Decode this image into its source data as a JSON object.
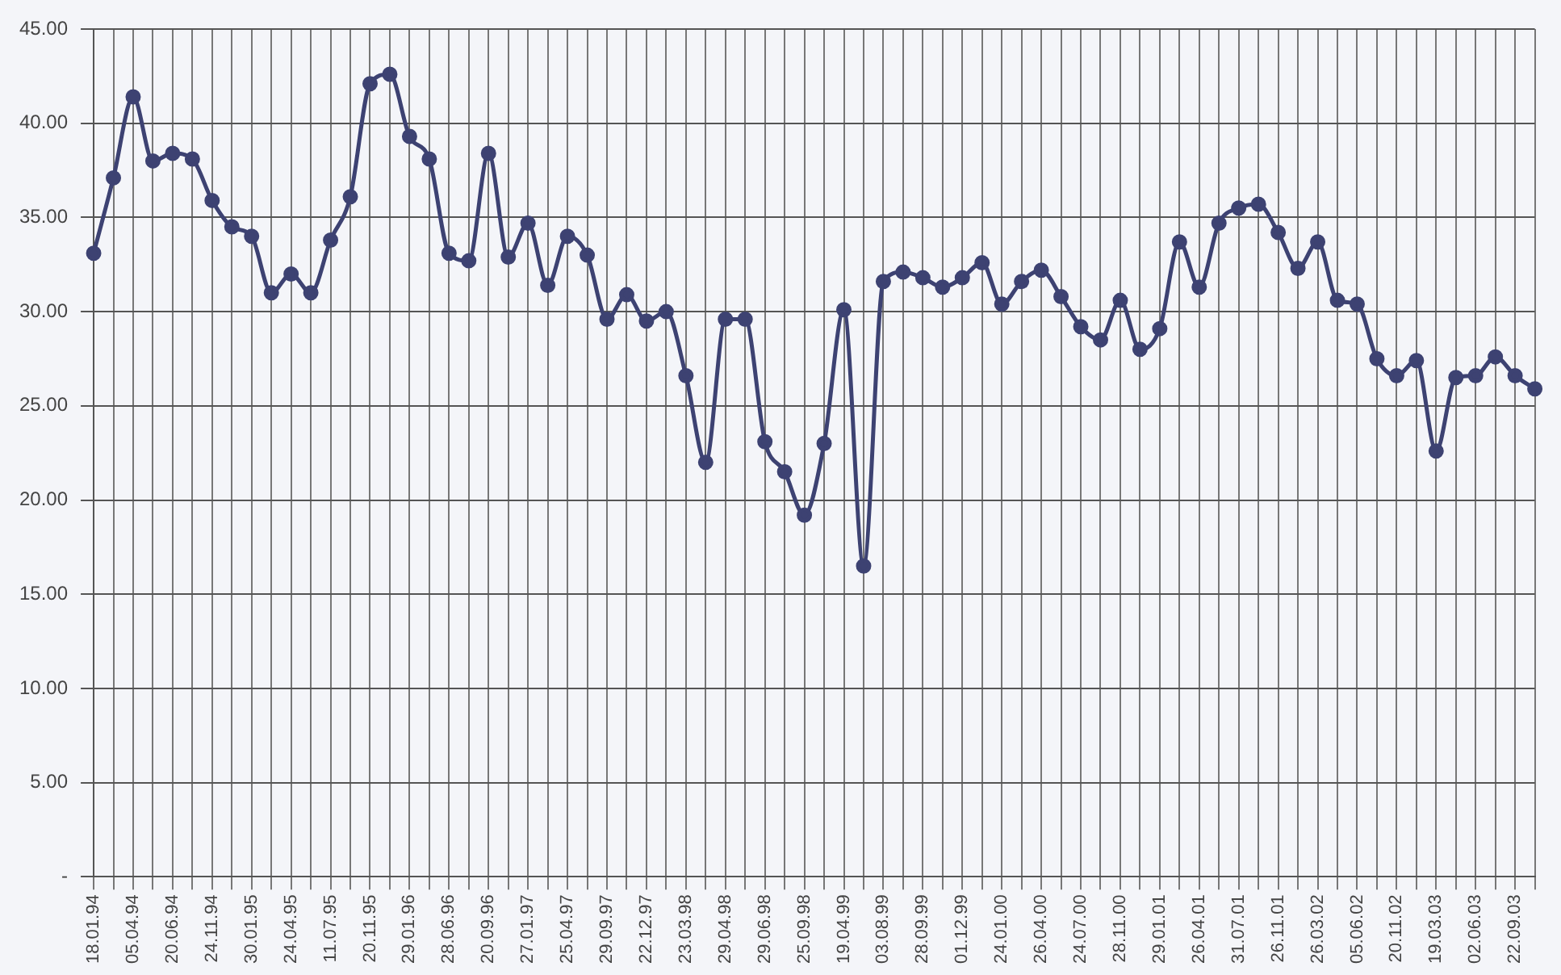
{
  "chart_data": {
    "type": "line",
    "categories": [
      "18.01.94",
      null,
      "05.04.94",
      null,
      "20.06.94",
      null,
      "24.11.94",
      null,
      "30.01.95",
      null,
      "24.04.95",
      null,
      "11.07.95",
      null,
      "20.11.95",
      null,
      "29.01.96",
      null,
      "28.06.96",
      null,
      "20.09.96",
      null,
      "27.01.97",
      null,
      "25.04.97",
      null,
      "29.09.97",
      null,
      "22.12.97",
      null,
      "23.03.98",
      null,
      "29.04.98",
      null,
      "29.06.98",
      null,
      "25.09.98",
      null,
      "19.04.99",
      null,
      "03.08.99",
      null,
      "28.09.99",
      null,
      "01.12.99",
      null,
      "24.01.00",
      null,
      "26.04.00",
      null,
      "24.07.00",
      null,
      "28.11.00",
      null,
      "29.01.01",
      null,
      "26.04.01",
      null,
      "31.07.01",
      null,
      "26.11.01",
      null,
      "26.03.02",
      null,
      "05.06.02",
      null,
      "20.11.02",
      null,
      "19.03.03",
      null,
      "02.06.03",
      null,
      "22.09.03",
      null
    ],
    "series": [
      {
        "color": "#3d4272",
        "values": [
          33.1,
          37.1,
          41.4,
          38.0,
          38.4,
          38.1,
          35.9,
          34.5,
          34.0,
          31.0,
          32.0,
          31.0,
          33.8,
          36.1,
          42.1,
          42.6,
          39.3,
          38.1,
          33.1,
          32.7,
          38.4,
          32.9,
          34.7,
          31.4,
          34.0,
          33.0,
          29.6,
          30.9,
          29.5,
          30.0,
          26.6,
          22.0,
          29.6,
          29.6,
          23.1,
          21.5,
          19.2,
          23.0,
          30.1,
          16.5,
          31.6,
          32.1,
          31.8,
          31.3,
          31.8,
          32.6,
          30.4,
          31.6,
          32.2,
          30.8,
          29.2,
          28.5,
          30.6,
          28.0,
          29.1,
          33.7,
          31.3,
          34.7,
          35.5,
          35.7,
          34.2,
          32.3,
          33.7,
          30.6,
          30.4,
          27.5,
          26.6,
          27.4,
          22.6,
          26.5,
          26.6,
          27.6,
          26.6,
          25.9
        ]
      }
    ],
    "ylim": [
      0,
      45
    ],
    "yticks": [
      {
        "value": 0,
        "label": "-"
      },
      {
        "value": 5,
        "label": "5.00"
      },
      {
        "value": 10,
        "label": "10.00"
      },
      {
        "value": 15,
        "label": "15.00"
      },
      {
        "value": 20,
        "label": "20.00"
      },
      {
        "value": 25,
        "label": "25.00"
      },
      {
        "value": 30,
        "label": "30.00"
      },
      {
        "value": 35,
        "label": "35.00"
      },
      {
        "value": 40,
        "label": "40.00"
      },
      {
        "value": 45,
        "label": "45.00"
      }
    ],
    "grid": true,
    "legend": false,
    "marker": "circle",
    "line_style": "solid"
  }
}
